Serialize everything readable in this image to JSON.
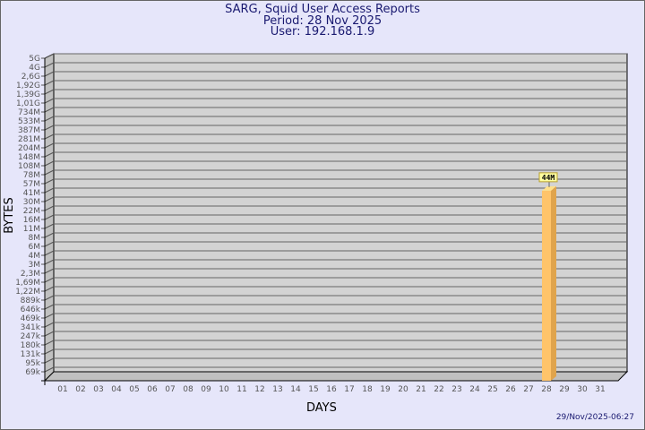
{
  "header": {
    "title": "SARG, Squid User Access Reports",
    "period": "Period: 28 Nov 2025",
    "user": "User: 192.168.1.9"
  },
  "timestamp": "29/Nov/2025-06:27",
  "chart_data": {
    "type": "bar",
    "title": "SARG, Squid User Access Reports",
    "xlabel": "DAYS",
    "ylabel": "BYTES",
    "y_scale": "log",
    "grid": true,
    "y_tick_labels": [
      "5G",
      "4G",
      "2,6G",
      "1,92G",
      "1,39G",
      "1,01G",
      "734M",
      "533M",
      "387M",
      "281M",
      "204M",
      "148M",
      "108M",
      "78M",
      "57M",
      "41M",
      "30M",
      "22M",
      "16M",
      "11M",
      "8M",
      "6M",
      "4M",
      "3M",
      "2,3M",
      "1,69M",
      "1,22M",
      "889k",
      "646k",
      "469k",
      "341k",
      "247k",
      "180k",
      "131k",
      "95k",
      "69k"
    ],
    "categories": [
      "01",
      "02",
      "03",
      "04",
      "05",
      "06",
      "07",
      "08",
      "09",
      "10",
      "11",
      "12",
      "13",
      "14",
      "15",
      "16",
      "17",
      "18",
      "19",
      "20",
      "21",
      "22",
      "23",
      "24",
      "25",
      "26",
      "27",
      "28",
      "29",
      "30",
      "31"
    ],
    "values_mb": [
      0,
      0,
      0,
      0,
      0,
      0,
      0,
      0,
      0,
      0,
      0,
      0,
      0,
      0,
      0,
      0,
      0,
      0,
      0,
      0,
      0,
      0,
      0,
      0,
      0,
      0,
      0,
      44,
      0,
      0,
      0
    ],
    "data_labels": {
      "28": "44M"
    },
    "colors": {
      "bar_front": "#ffc46a",
      "bar_side": "#e0a44c",
      "bar_top": "#ffe08a",
      "plot_bg": "#d3d3d3",
      "label_bg": "#ffffa0"
    }
  }
}
